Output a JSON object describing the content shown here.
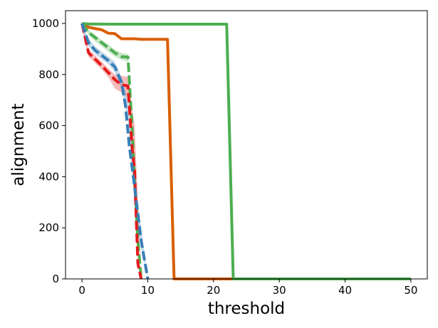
{
  "chart_data": {
    "type": "line",
    "title": "",
    "xlabel": "threshold",
    "ylabel": "alignment",
    "xlim": [
      -2.5,
      52.5
    ],
    "ylim": [
      0,
      1050
    ],
    "xticks": [
      0,
      10,
      20,
      30,
      40,
      50
    ],
    "yticks": [
      0,
      200,
      400,
      600,
      800,
      1000
    ],
    "grid": false,
    "legend": "none",
    "series": [
      {
        "color": "#d95f02",
        "style": "solid",
        "band": null,
        "points": [
          [
            0,
            1000
          ],
          [
            1,
            985
          ],
          [
            2,
            980
          ],
          [
            3,
            975
          ],
          [
            4,
            962
          ],
          [
            5,
            960
          ],
          [
            6,
            940
          ],
          [
            7,
            940
          ],
          [
            8,
            940
          ],
          [
            9,
            938
          ],
          [
            10,
            938
          ],
          [
            11,
            938
          ],
          [
            12,
            938
          ],
          [
            13,
            938
          ],
          [
            14,
            0
          ],
          [
            50,
            0
          ]
        ]
      },
      {
        "color": "#4caf50",
        "style": "solid",
        "band": null,
        "points": [
          [
            0,
            1000
          ],
          [
            1,
            998
          ],
          [
            5,
            997
          ],
          [
            10,
            997
          ],
          [
            15,
            997
          ],
          [
            20,
            997
          ],
          [
            22,
            997
          ],
          [
            23,
            0
          ],
          [
            50,
            0
          ]
        ]
      },
      {
        "color": "#4caf50",
        "style": "dashed",
        "band": {
          "color": "#4caf50",
          "lower": [
            [
              0,
              1000
            ],
            [
              1,
              955
            ],
            [
              2,
              930
            ],
            [
              3,
              910
            ],
            [
              4,
              890
            ],
            [
              5,
              870
            ],
            [
              6,
              858
            ],
            [
              7,
              850
            ],
            [
              8,
              360
            ],
            [
              9,
              0
            ]
          ],
          "upper": [
            [
              0,
              1000
            ],
            [
              1,
              975
            ],
            [
              2,
              955
            ],
            [
              3,
              935
            ],
            [
              4,
              918
            ],
            [
              5,
              898
            ],
            [
              6,
              885
            ],
            [
              7,
              880
            ],
            [
              8,
              430
            ],
            [
              9,
              0
            ]
          ]
        },
        "points": [
          [
            0,
            1000
          ],
          [
            1,
            965
          ],
          [
            2,
            945
          ],
          [
            3,
            925
          ],
          [
            4,
            905
          ],
          [
            5,
            885
          ],
          [
            6,
            870
          ],
          [
            7,
            868
          ],
          [
            7.6,
            600
          ],
          [
            8,
            380
          ],
          [
            8.5,
            150
          ],
          [
            9,
            0
          ]
        ]
      },
      {
        "color": "#e41a1c",
        "style": "dashed",
        "band": {
          "color": "#e41a1c",
          "lower": [
            [
              0,
              980
            ],
            [
              1,
              870
            ],
            [
              2,
              845
            ],
            [
              3,
              820
            ],
            [
              4,
              790
            ],
            [
              5,
              745
            ],
            [
              6,
              730
            ],
            [
              7,
              710
            ],
            [
              8,
              400
            ],
            [
              9,
              0
            ]
          ],
          "upper": [
            [
              0,
              1000
            ],
            [
              1,
              900
            ],
            [
              2,
              875
            ],
            [
              3,
              850
            ],
            [
              4,
              825
            ],
            [
              5,
              800
            ],
            [
              6,
              795
            ],
            [
              7,
              790
            ],
            [
              8,
              600
            ],
            [
              9,
              0
            ]
          ]
        },
        "points": [
          [
            0,
            1000
          ],
          [
            1,
            885
          ],
          [
            2,
            860
          ],
          [
            3,
            835
          ],
          [
            4,
            808
          ],
          [
            5,
            780
          ],
          [
            6,
            760
          ],
          [
            7,
            755
          ],
          [
            7.6,
            520
          ],
          [
            8,
            420
          ],
          [
            8.5,
            60
          ],
          [
            9,
            0
          ]
        ]
      },
      {
        "color": "#377eb8",
        "style": "dashed",
        "band": {
          "color": "#377eb8",
          "lower": [
            [
              0,
              980
            ],
            [
              1,
              910
            ],
            [
              2,
              880
            ],
            [
              3,
              860
            ],
            [
              4,
              840
            ],
            [
              5,
              810
            ],
            [
              6,
              740
            ],
            [
              7,
              620
            ],
            [
              8,
              300
            ],
            [
              9,
              120
            ],
            [
              10,
              0
            ]
          ],
          "upper": [
            [
              0,
              1000
            ],
            [
              1,
              940
            ],
            [
              2,
              910
            ],
            [
              3,
              890
            ],
            [
              4,
              870
            ],
            [
              5,
              850
            ],
            [
              6,
              790
            ],
            [
              7,
              700
            ],
            [
              8,
              380
            ],
            [
              9,
              200
            ],
            [
              10,
              0
            ]
          ]
        },
        "points": [
          [
            0,
            1000
          ],
          [
            1,
            925
          ],
          [
            2,
            895
          ],
          [
            3,
            875
          ],
          [
            4,
            855
          ],
          [
            5,
            830
          ],
          [
            6,
            770
          ],
          [
            6.6,
            680
          ],
          [
            7.2,
            520
          ],
          [
            8,
            360
          ],
          [
            9,
            150
          ],
          [
            10,
            0
          ]
        ]
      }
    ]
  }
}
